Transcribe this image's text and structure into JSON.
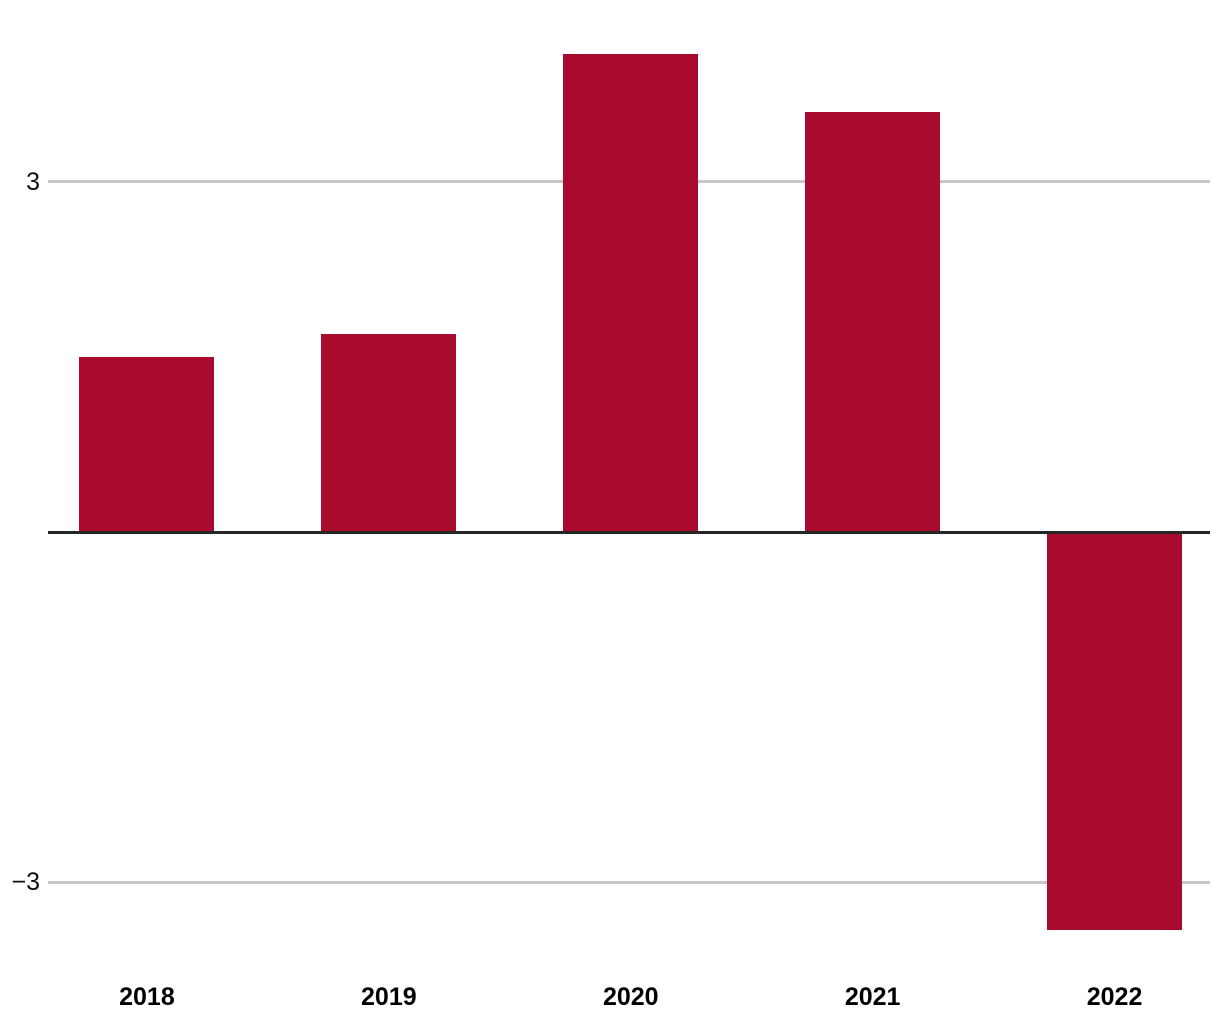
{
  "chart_data": {
    "type": "bar",
    "title": "",
    "xlabel": "",
    "ylabel": "",
    "categories": [
      "2018",
      "2019",
      "2020",
      "2021",
      "2022"
    ],
    "values": [
      1.5,
      1.7,
      4.1,
      3.6,
      -3.4
    ],
    "ylim": [
      -3.6,
      4.2
    ],
    "yticks": [
      {
        "value": 3,
        "label": "3"
      },
      {
        "value": -3,
        "label": "−3"
      }
    ],
    "grid": true,
    "legend": "none",
    "colors": {
      "bar": "#A80B2E",
      "gridline": "#C6C6C6",
      "baseline": "#262626",
      "tick_text": "#111111",
      "category_text": "#000000"
    }
  }
}
